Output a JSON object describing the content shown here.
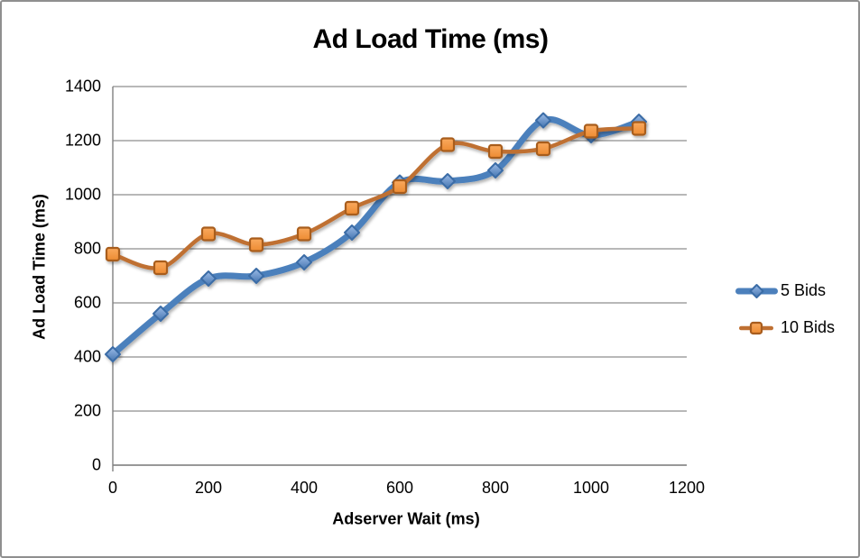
{
  "chart_data": {
    "type": "line",
    "title": "Ad Load Time (ms)",
    "xlabel": "Adserver Wait (ms)",
    "ylabel": "Ad Load Time (ms)",
    "x": [
      0,
      100,
      200,
      300,
      400,
      500,
      600,
      700,
      800,
      900,
      1000,
      1100
    ],
    "series": [
      {
        "name": "5 Bids",
        "values": [
          410,
          560,
          690,
          700,
          750,
          860,
          1045,
          1050,
          1090,
          1275,
          1220,
          1270
        ],
        "line_color": "#4C80BC",
        "line_width": 7,
        "marker": "diamond",
        "marker_size": 16,
        "marker_fill_top": "#9CBCE8",
        "marker_fill_bottom": "#4575B0",
        "marker_stroke": "#3A6CA6"
      },
      {
        "name": "10 Bids",
        "values": [
          780,
          730,
          855,
          815,
          855,
          950,
          1030,
          1185,
          1160,
          1170,
          1235,
          1245
        ],
        "line_color": "#BF7032",
        "line_width": 4.5,
        "marker": "square",
        "marker_size": 14,
        "marker_fill_top": "#FAAA5F",
        "marker_fill_bottom": "#ED8B32",
        "marker_stroke": "#A85D1E"
      }
    ],
    "xlim": [
      0,
      1200
    ],
    "ylim": [
      0,
      1400
    ],
    "x_ticks": [
      0,
      200,
      400,
      600,
      800,
      1000,
      1200
    ],
    "y_ticks": [
      0,
      200,
      400,
      600,
      800,
      1000,
      1200,
      1400
    ],
    "grid": true,
    "smoothed_lines": true,
    "legend_position": "right",
    "colors": {
      "grid": "#8E8E8E",
      "axis": "#808080",
      "text": "#000000",
      "background": "#FFFFFF",
      "frame_border": "#8F8F8F"
    }
  }
}
